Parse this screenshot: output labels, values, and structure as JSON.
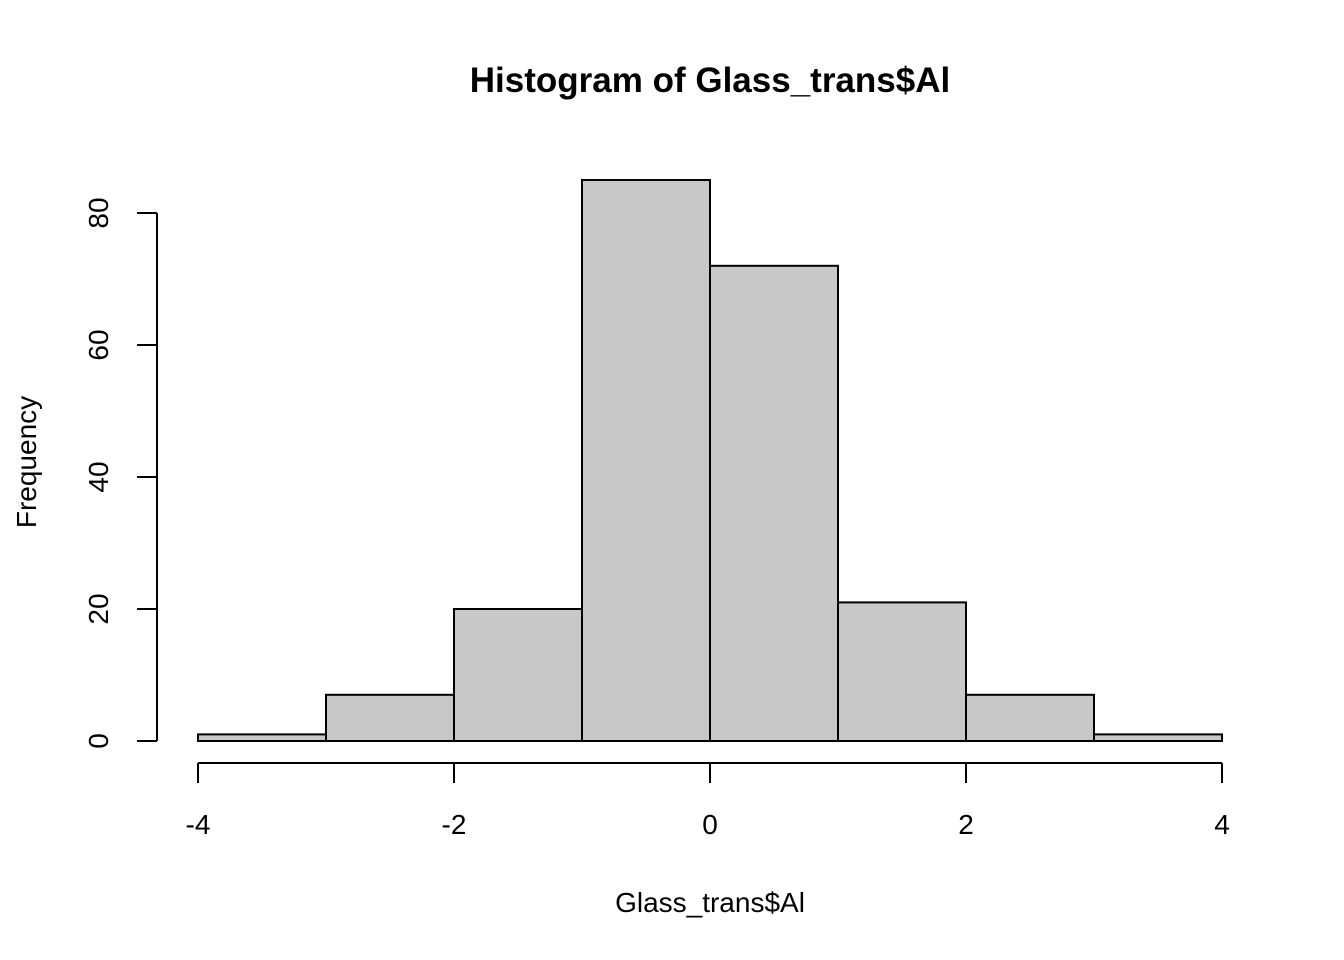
{
  "chart_data": {
    "type": "bar",
    "title": "Histogram of Glass_trans$Al",
    "xlabel": "Glass_trans$Al",
    "ylabel": "Frequency",
    "bins": [
      {
        "start": -4,
        "end": -3,
        "count": 1
      },
      {
        "start": -3,
        "end": -2,
        "count": 7
      },
      {
        "start": -2,
        "end": -1,
        "count": 20
      },
      {
        "start": -1,
        "end": 0,
        "count": 85
      },
      {
        "start": 0,
        "end": 1,
        "count": 72
      },
      {
        "start": 1,
        "end": 2,
        "count": 21
      },
      {
        "start": 2,
        "end": 3,
        "count": 7
      },
      {
        "start": 3,
        "end": 4,
        "count": 1
      }
    ],
    "xlim": [
      -4,
      4
    ],
    "ylim": [
      0,
      85
    ],
    "x_ticks": [
      "-4",
      "-2",
      "0",
      "2",
      "4"
    ],
    "y_ticks": [
      "0",
      "20",
      "40",
      "60",
      "80"
    ],
    "bar_fill": "#c8c8c8",
    "bar_stroke": "#000000",
    "grid": false,
    "legend": "none"
  }
}
